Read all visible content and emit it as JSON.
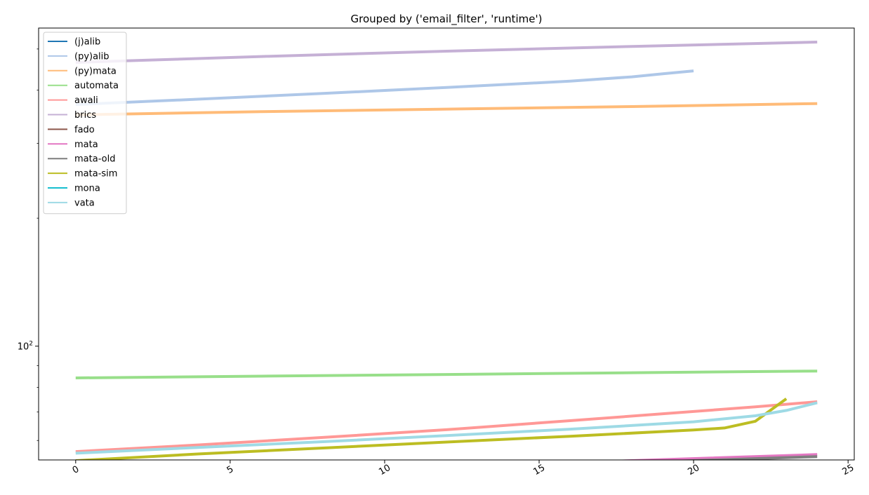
{
  "chart_data": {
    "type": "line",
    "title": "Grouped by ('email_filter', 'runtime')",
    "xlabel": "",
    "ylabel": "",
    "yscale": "log",
    "xlim": [
      -1.2,
      25.2
    ],
    "ylim": [
      54,
      560
    ],
    "x_ticks": [
      0,
      5,
      10,
      15,
      20,
      25
    ],
    "y_ticks": [
      {
        "value": 100,
        "base": "10",
        "exp": "2"
      }
    ],
    "grid": false,
    "legend_position": "upper-left",
    "series": [
      {
        "name": "(j)alib",
        "color": "#1f77b4",
        "x": [],
        "y": []
      },
      {
        "name": "(py)alib",
        "color": "#aec7e8",
        "x": [
          0,
          4,
          8,
          12,
          16,
          18,
          19,
          20
        ],
        "y": [
          370,
          381,
          393,
          406,
          420,
          430,
          437,
          444
        ]
      },
      {
        "name": "(py)mata",
        "color": "#ffbb78",
        "x": [
          0,
          6,
          12,
          18,
          24
        ],
        "y": [
          350,
          356,
          361,
          366,
          372
        ]
      },
      {
        "name": "automata",
        "color": "#98df8a",
        "x": [
          0,
          6,
          12,
          18,
          24
        ],
        "y": [
          84.2,
          85.0,
          85.8,
          86.6,
          87.4
        ]
      },
      {
        "name": "awali",
        "color": "#ff9896",
        "x": [
          0,
          4,
          8,
          12,
          16,
          20,
          22,
          24
        ],
        "y": [
          56.5,
          58.6,
          61.0,
          63.6,
          66.8,
          70.2,
          72.0,
          74.0
        ]
      },
      {
        "name": "brics",
        "color": "#c5b0d5",
        "x": [
          0,
          6,
          12,
          18,
          24
        ],
        "y": [
          465,
          480,
          494,
          507,
          519
        ]
      },
      {
        "name": "fado",
        "color": "#8c564b",
        "x": [],
        "y": []
      },
      {
        "name": "mata",
        "color": "#e377c2",
        "x": [
          0,
          6,
          12,
          18,
          24
        ],
        "y": [
          48.5,
          50.2,
          52.0,
          53.8,
          55.6
        ]
      },
      {
        "name": "mata-old",
        "color": "#7f7f7f",
        "x": [
          0,
          6,
          12,
          18,
          24
        ],
        "y": [
          48.4,
          49.9,
          51.6,
          53.2,
          55.0
        ]
      },
      {
        "name": "mata-sim",
        "color": "#bcbd22",
        "x": [
          0,
          4,
          8,
          12,
          16,
          20,
          21,
          22,
          23
        ],
        "y": [
          53.8,
          55.8,
          57.6,
          59.5,
          61.4,
          63.5,
          64.2,
          66.6,
          75.2
        ]
      },
      {
        "name": "mona",
        "color": "#17becf",
        "x": [],
        "y": []
      },
      {
        "name": "vata",
        "color": "#9edae5",
        "x": [
          0,
          4,
          8,
          12,
          16,
          20,
          22,
          23,
          24
        ],
        "y": [
          56.0,
          57.8,
          59.6,
          61.6,
          63.8,
          66.4,
          68.6,
          70.6,
          73.6
        ]
      }
    ]
  }
}
